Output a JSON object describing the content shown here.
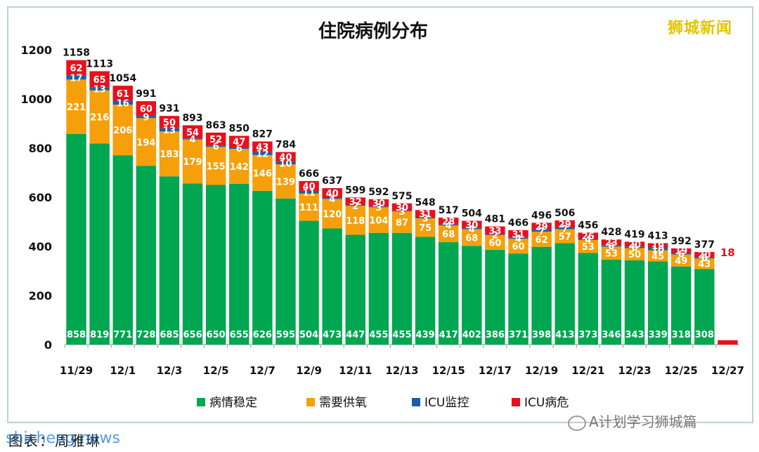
{
  "watermark": "狮城新闻",
  "wechat": "A计划学习狮城篇",
  "caption": "图表：周雅琳",
  "site": "shicheng.news",
  "chart_data": {
    "type": "bar",
    "title": "住院病例分布",
    "stacked": true,
    "categories": [
      "11/29",
      "11/30",
      "12/1",
      "12/2",
      "12/3",
      "12/4",
      "12/5",
      "12/6",
      "12/7",
      "12/8",
      "12/9",
      "12/10",
      "12/11",
      "12/12",
      "12/13",
      "12/14",
      "12/15",
      "12/16",
      "12/17",
      "12/18",
      "12/19",
      "12/20",
      "12/21",
      "12/22",
      "12/23",
      "12/24",
      "12/25",
      "12/26",
      "12/27"
    ],
    "x_tick_labels": [
      "11/29",
      "12/1",
      "12/3",
      "12/5",
      "12/7",
      "12/9",
      "12/11",
      "12/13",
      "12/15",
      "12/17",
      "12/19",
      "12/21",
      "12/23",
      "12/25",
      "12/27"
    ],
    "ylim": [
      0,
      1200
    ],
    "yticks": [
      0,
      200,
      400,
      600,
      800,
      1000,
      1200
    ],
    "series": [
      {
        "name": "病情稳定",
        "color": "#00a650",
        "values": [
          858,
          819,
          771,
          728,
          685,
          656,
          650,
          655,
          626,
          595,
          504,
          473,
          447,
          455,
          455,
          439,
          417,
          402,
          386,
          371,
          398,
          413,
          373,
          346,
          343,
          339,
          318,
          308,
          null
        ]
      },
      {
        "name": "需要供氧",
        "color": "#f5a00b",
        "values": [
          221,
          216,
          206,
          194,
          183,
          179,
          155,
          142,
          146,
          139,
          111,
          120,
          118,
          104,
          87,
          75,
          68,
          68,
          60,
          60,
          62,
          57,
          53,
          53,
          50,
          45,
          49,
          43,
          null
        ]
      },
      {
        "name": "ICU监控",
        "color": "#1a5fa8",
        "values": [
          17,
          13,
          16,
          9,
          13,
          4,
          6,
          6,
          12,
          10,
          11,
          4,
          2,
          3,
          3,
          3,
          4,
          4,
          2,
          4,
          7,
          7,
          4,
          6,
          6,
          10,
          6,
          6,
          null
        ]
      },
      {
        "name": "ICU病危",
        "color": "#e8101c",
        "values": [
          62,
          65,
          61,
          60,
          50,
          54,
          52,
          47,
          43,
          40,
          40,
          40,
          32,
          30,
          30,
          31,
          28,
          30,
          33,
          31,
          29,
          29,
          26,
          23,
          20,
          19,
          19,
          20,
          18
        ]
      }
    ],
    "totals": [
      1158,
      1113,
      1054,
      991,
      931,
      893,
      863,
      850,
      827,
      784,
      666,
      637,
      599,
      592,
      575,
      548,
      517,
      504,
      481,
      466,
      496,
      506,
      456,
      428,
      419,
      413,
      392,
      377,
      null
    ],
    "legend_position": "bottom",
    "grid": false
  }
}
